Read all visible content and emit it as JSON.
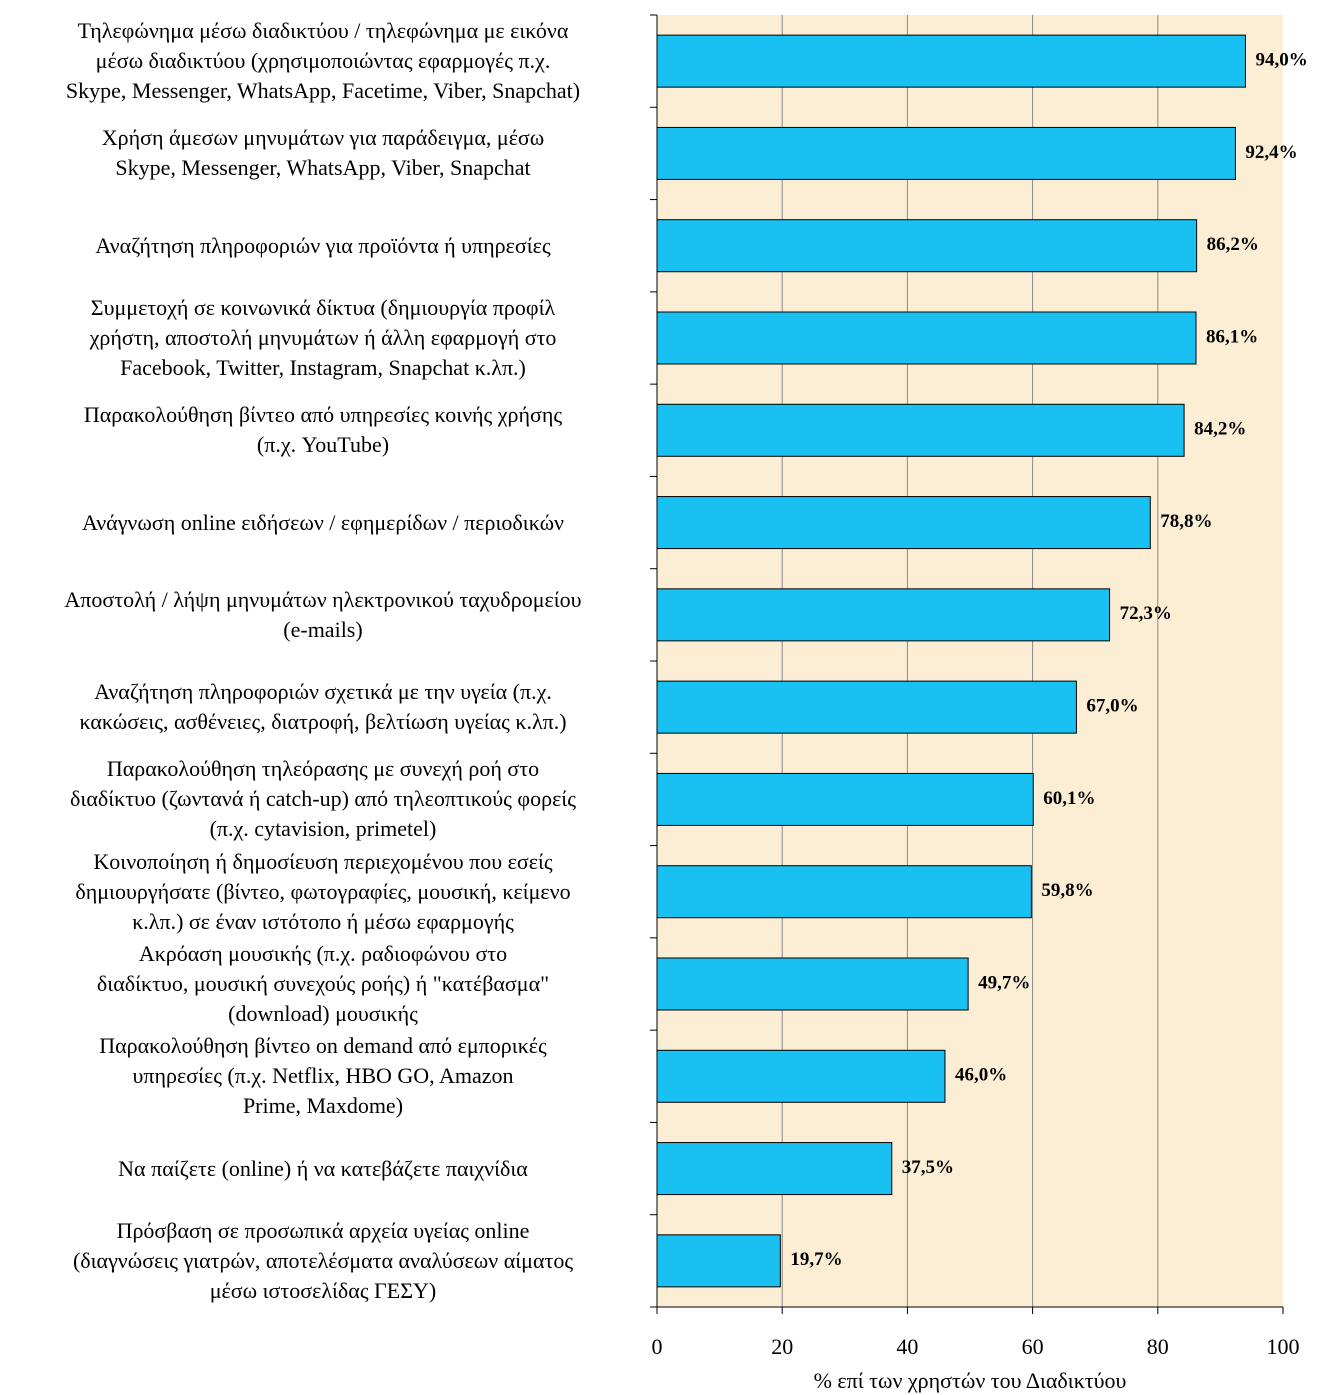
{
  "chart_data": {
    "type": "barh",
    "categories": [
      "Τηλεφώνημα μέσω διαδικτύου / τηλεφώνημα με εικόνα\nμέσω διαδικτύου (χρησιμοποιώντας εφαρμογές π.χ.\nSkype, Messenger, WhatsApp, Facetime, Viber, Snapchat)",
      "Χρήση άμεσων μηνυμάτων για παράδειγμα, μέσω\nSkype, Messenger, WhatsApp, Viber, Snapchat",
      "Αναζήτηση πληροφοριών για προϊόντα ή υπηρεσίες",
      "Συμμετοχή σε κοινωνικά δίκτυα (δημιουργία προφίλ\nχρήστη, αποστολή μηνυμάτων ή άλλη εφαρμογή στο\nFacebook, Twitter, Instagram, Snapchat κ.λπ.)",
      "Παρακολούθηση βίντεο από υπηρεσίες κοινής χρήσης\n(π.χ. YouTube)",
      "Ανάγνωση online ειδήσεων / εφημερίδων / περιοδικών",
      "Αποστολή / λήψη μηνυμάτων ηλεκτρονικού ταχυδρομείου\n(e-mails)",
      "Αναζήτηση πληροφοριών σχετικά με την υγεία (π.χ.\nκακώσεις, ασθένειες, διατροφή, βελτίωση υγείας κ.λπ.)",
      "Παρακολούθηση τηλεόρασης με συνεχή ροή στο\nδιαδίκτυο (ζωντανά ή catch-up) από τηλεοπτικούς φορείς\n(π.χ. cytavision, primetel)",
      "Κοινοποίηση ή δημοσίευση περιεχομένου που εσείς\nδημιουργήσατε (βίντεο, φωτογραφίες, μουσική, κείμενο\nκ.λπ.) σε έναν ιστότοπο ή μέσω εφαρμογής",
      "Ακρόαση μουσικής (π.χ. ραδιοφώνου στο\nδιαδίκτυο, μουσική συνεχούς ροής) ή \"κατέβασμα\"\n(download) μουσικής",
      "Παρακολούθηση βίντεο on demand από εμπορικές\nυπηρεσίες (π.χ. Netflix, HBO GO, Amazon\nPrime, Maxdome)",
      "Να παίζετε (online) ή να κατεβάζετε παιχνίδια",
      "Πρόσβαση σε προσωπικά αρχεία υγείας online\n(διαγνώσεις γιατρών, αποτελέσματα αναλύσεων αίματος\nμέσω ιστοσελίδας ΓΕΣΥ)"
    ],
    "values": [
      94.0,
      92.4,
      86.2,
      86.1,
      84.2,
      78.8,
      72.3,
      67.0,
      60.1,
      59.8,
      49.7,
      46.0,
      37.5,
      19.7
    ],
    "value_labels": [
      "94,0%",
      "92,4%",
      "86,2%",
      "86,1%",
      "84,2%",
      "78,8%",
      "72,3%",
      "67,0%",
      "60,1%",
      "59,8%",
      "49,7%",
      "46,0%",
      "37,5%",
      "19,7%"
    ],
    "color": "#19c0f2",
    "xlabel": "% επί των χρηστών του Διαδικτύου",
    "xlim": [
      0,
      100
    ],
    "xticks": [
      0,
      20,
      40,
      60,
      80,
      100
    ],
    "grid": true
  }
}
